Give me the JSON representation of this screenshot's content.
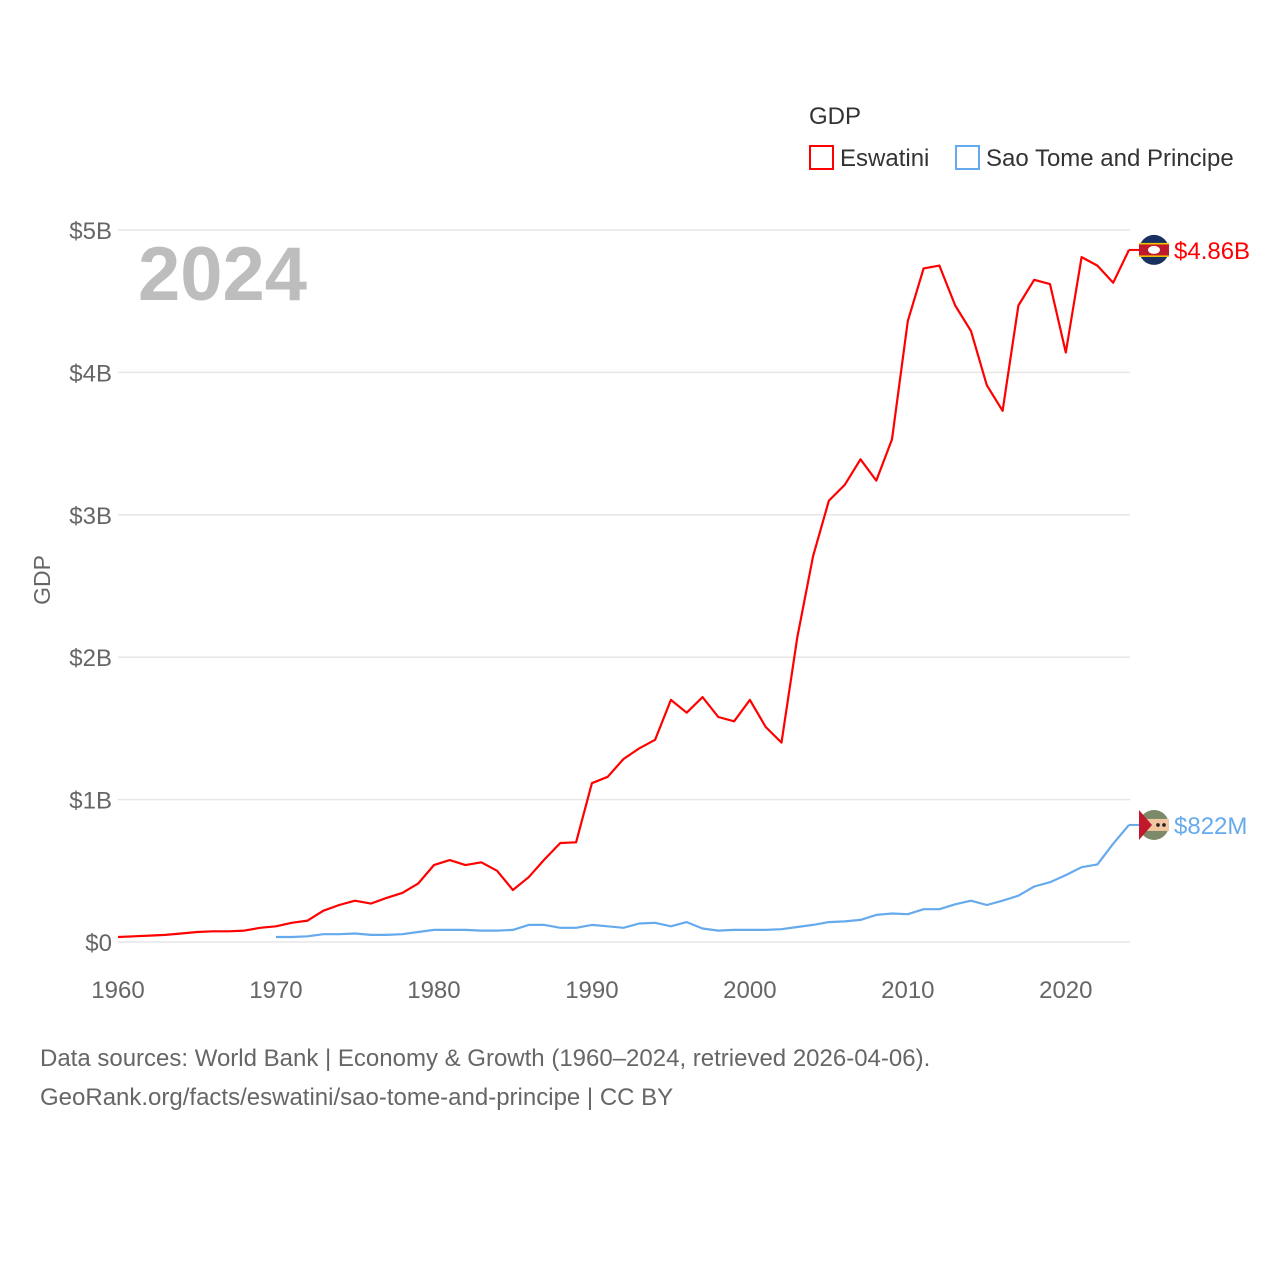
{
  "chart_data": {
    "type": "line",
    "title": "",
    "watermark_year": "2024",
    "xlabel": "",
    "ylabel": "GDP",
    "xlim": [
      1960,
      2024
    ],
    "ylim": [
      0,
      5
    ],
    "y_unit": "billion USD",
    "x_ticks": [
      "1960",
      "1970",
      "1980",
      "1990",
      "2000",
      "2010",
      "2020"
    ],
    "y_ticks": [
      {
        "value": 0,
        "label": "$0"
      },
      {
        "value": 1,
        "label": "$1B"
      },
      {
        "value": 2,
        "label": "$2B"
      },
      {
        "value": 3,
        "label": "$3B"
      },
      {
        "value": 4,
        "label": "$4B"
      },
      {
        "value": 5,
        "label": "$5B"
      }
    ],
    "grid": true,
    "legend": {
      "title": "GDP",
      "placement": "top-right"
    },
    "series": [
      {
        "name": "Eswatini",
        "color": "#ff0000",
        "end_label": "$4.86B",
        "flag": "eswatini-flag",
        "start_year": 1960,
        "values": [
          0.035,
          0.04,
          0.045,
          0.05,
          0.06,
          0.07,
          0.075,
          0.075,
          0.08,
          0.1,
          0.11,
          0.135,
          0.15,
          0.22,
          0.26,
          0.29,
          0.27,
          0.31,
          0.345,
          0.41,
          0.54,
          0.575,
          0.54,
          0.56,
          0.5,
          0.365,
          0.455,
          0.58,
          0.695,
          0.7,
          1.115,
          1.16,
          1.285,
          1.36,
          1.42,
          1.7,
          1.61,
          1.72,
          1.58,
          1.55,
          1.7,
          1.51,
          1.4,
          2.14,
          2.71,
          3.1,
          3.21,
          3.39,
          3.24,
          3.53,
          4.36,
          4.73,
          4.75,
          4.47,
          4.29,
          3.91,
          3.73,
          4.47,
          4.65,
          4.62,
          4.14,
          4.81,
          4.75,
          4.63,
          4.86
        ]
      },
      {
        "name": "Sao Tome and Principe",
        "color": "#66aaee",
        "end_label": "$822M",
        "flag": "sao-tome-flag",
        "start_year": 1970,
        "values": [
          0.035,
          0.035,
          0.04,
          0.055,
          0.055,
          0.06,
          0.05,
          0.05,
          0.055,
          0.07,
          0.085,
          0.085,
          0.085,
          0.08,
          0.08,
          0.085,
          0.12,
          0.12,
          0.1,
          0.1,
          0.12,
          0.11,
          0.1,
          0.13,
          0.135,
          0.11,
          0.14,
          0.095,
          0.08,
          0.085,
          0.085,
          0.085,
          0.09,
          0.105,
          0.12,
          0.14,
          0.145,
          0.155,
          0.19,
          0.2,
          0.195,
          0.23,
          0.23,
          0.265,
          0.29,
          0.26,
          0.29,
          0.325,
          0.39,
          0.42,
          0.47,
          0.525,
          0.545,
          0.69,
          0.822
        ]
      }
    ]
  },
  "footer": {
    "line1": "Data sources: World Bank | Economy & Growth (1960–2024, retrieved 2026-04-06).",
    "line2": "GeoRank.org/facts/eswatini/sao-tome-and-principe | CC BY"
  }
}
